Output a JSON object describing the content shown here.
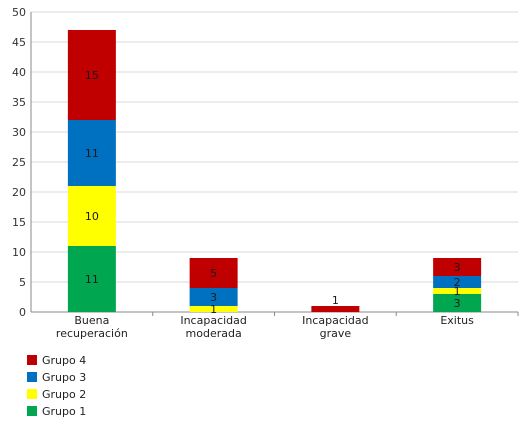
{
  "chart_data": {
    "type": "bar",
    "stacked": true,
    "title": "",
    "xlabel": "",
    "ylabel": "",
    "ylim": [
      0,
      50
    ],
    "yticks": [
      0,
      5,
      10,
      15,
      20,
      25,
      30,
      35,
      40,
      45,
      50
    ],
    "grid": true,
    "legend_position": "bottom-left",
    "categories": [
      [
        "Buena",
        "recuperación"
      ],
      [
        "Incapacidad",
        "moderada"
      ],
      [
        "Incapacidad",
        "grave"
      ],
      [
        "Exitus"
      ]
    ],
    "series": [
      {
        "name": "Grupo 1",
        "color": "#00a650",
        "values": [
          11,
          0,
          0,
          3
        ]
      },
      {
        "name": "Grupo 2",
        "color": "#ffff00",
        "values": [
          10,
          1,
          0,
          1
        ]
      },
      {
        "name": "Grupo 3",
        "color": "#0070c0",
        "values": [
          11,
          3,
          0,
          2
        ]
      },
      {
        "name": "Grupo 4",
        "color": "#c00000",
        "values": [
          15,
          5,
          1,
          3
        ]
      }
    ]
  }
}
